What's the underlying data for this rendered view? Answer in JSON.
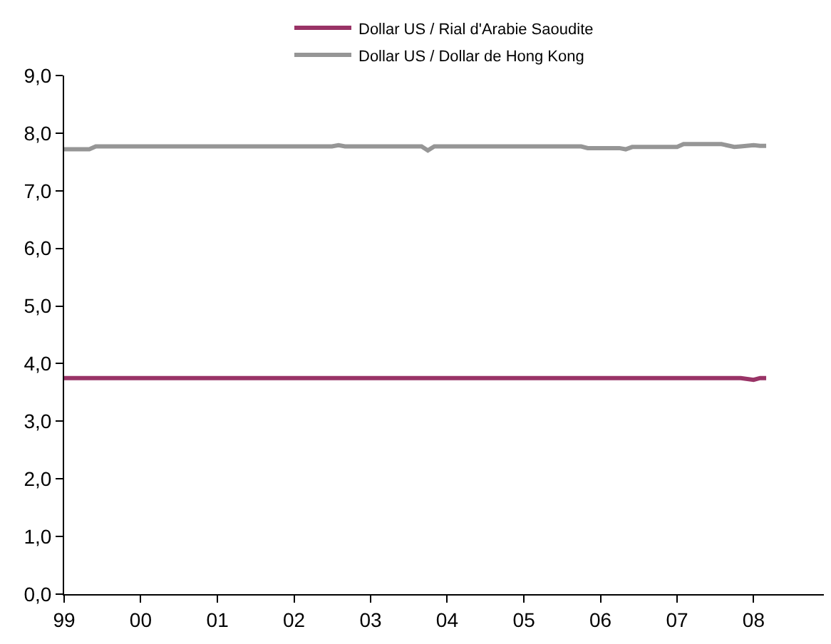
{
  "chart_data": {
    "type": "line",
    "x": [
      "1999-01",
      "1999-05",
      "1999-06",
      "2002-07",
      "2002-08",
      "2002-09",
      "2003-09",
      "2003-10",
      "2003-11",
      "2005-10",
      "2005-11",
      "2006-04",
      "2006-05",
      "2006-06",
      "2007-01",
      "2007-02",
      "2007-08",
      "2007-10",
      "2007-11",
      "2008-01",
      "2008-02",
      "2008-03"
    ],
    "series": [
      {
        "name": "Dollar US / Rial d'Arabie Saoudite",
        "color": "#993366",
        "values": [
          3.75,
          3.75,
          3.75,
          3.75,
          3.75,
          3.75,
          3.75,
          3.75,
          3.75,
          3.75,
          3.75,
          3.75,
          3.75,
          3.75,
          3.75,
          3.75,
          3.75,
          3.75,
          3.75,
          3.72,
          3.75,
          3.75
        ]
      },
      {
        "name": "Dollar US / Dollar de Hong Kong",
        "color": "#969696",
        "values": [
          7.72,
          7.72,
          7.77,
          7.77,
          7.79,
          7.77,
          7.77,
          7.7,
          7.77,
          7.77,
          7.74,
          7.74,
          7.72,
          7.76,
          7.76,
          7.81,
          7.81,
          7.76,
          7.77,
          7.79,
          7.78,
          7.78
        ]
      }
    ],
    "xlim": [
      "1999-01-01",
      "2008-12-01"
    ],
    "xticks": [
      {
        "value": "1999-01-01",
        "label": "99"
      },
      {
        "value": "2000-01-01",
        "label": "00"
      },
      {
        "value": "2001-01-01",
        "label": "01"
      },
      {
        "value": "2002-01-01",
        "label": "02"
      },
      {
        "value": "2003-01-01",
        "label": "03"
      },
      {
        "value": "2004-01-01",
        "label": "04"
      },
      {
        "value": "2005-01-01",
        "label": "05"
      },
      {
        "value": "2006-01-01",
        "label": "06"
      },
      {
        "value": "2007-01-01",
        "label": "07"
      },
      {
        "value": "2008-01-01",
        "label": "08"
      }
    ],
    "ylim": [
      0,
      9
    ],
    "yticks": [
      {
        "value": 0,
        "label": "0,0"
      },
      {
        "value": 1,
        "label": "1,0"
      },
      {
        "value": 2,
        "label": "2,0"
      },
      {
        "value": 3,
        "label": "3,0"
      },
      {
        "value": 4,
        "label": "4,0"
      },
      {
        "value": 5,
        "label": "5,0"
      },
      {
        "value": 6,
        "label": "6,0"
      },
      {
        "value": 7,
        "label": "7,0"
      },
      {
        "value": 8,
        "label": "8,0"
      },
      {
        "value": 9,
        "label": "9,0"
      }
    ],
    "legend": "top",
    "marker": "none",
    "line_style": "solid"
  }
}
